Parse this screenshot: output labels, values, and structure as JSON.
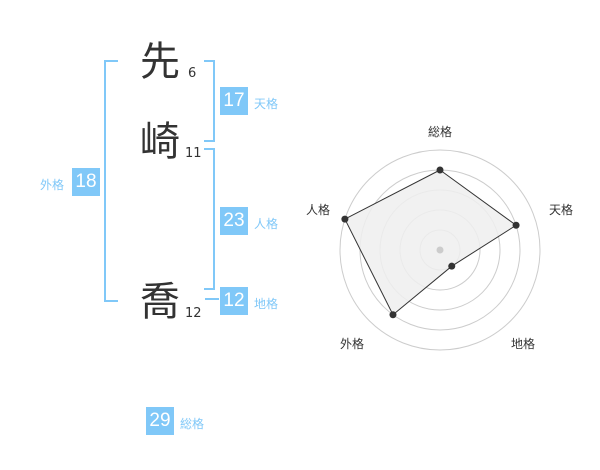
{
  "name": {
    "chars": [
      {
        "char": "先",
        "strokes": "6"
      },
      {
        "char": "崎",
        "strokes": "11"
      },
      {
        "char": "喬",
        "strokes": "12"
      }
    ]
  },
  "fortunes": {
    "tenkaku": {
      "label": "天格",
      "value": "17"
    },
    "jinkaku": {
      "label": "人格",
      "value": "23"
    },
    "chikaku": {
      "label": "地格",
      "value": "12"
    },
    "gaikaku": {
      "label": "外格",
      "value": "18"
    },
    "soukaku": {
      "label": "総格",
      "value": "29"
    }
  },
  "chart_data": {
    "type": "radar",
    "axes": [
      "総格",
      "天格",
      "地格",
      "外格",
      "人格"
    ],
    "values": [
      4,
      4,
      1,
      4,
      5
    ],
    "range": [
      0,
      5
    ],
    "fill_color": "#efefef",
    "line_color": "#333333",
    "grid_color": "#cccccc"
  }
}
